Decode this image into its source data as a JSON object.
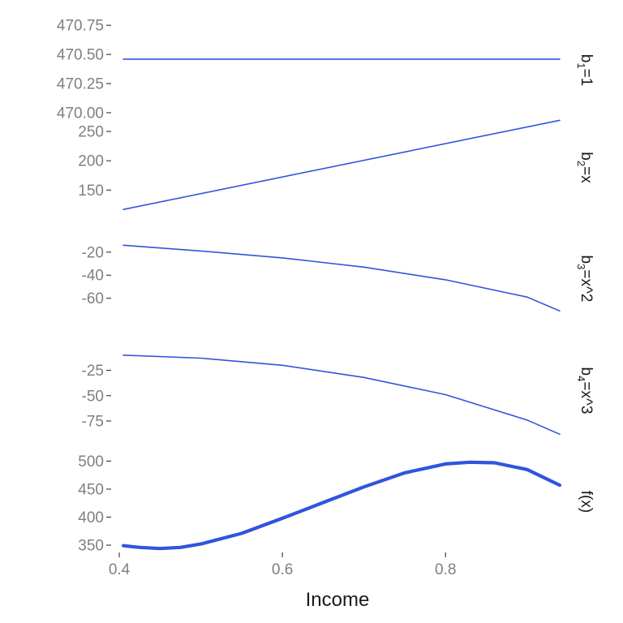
{
  "chart_data": {
    "type": "line",
    "xlabel": "Income",
    "x_ticks": [
      "0.4",
      "0.6",
      "0.8"
    ],
    "x_tick_values": [
      0.4,
      0.6,
      0.8
    ],
    "xlim": [
      0.39,
      0.945
    ],
    "line_color": "#2f55dc",
    "grid": false,
    "panels": [
      {
        "strip_label": {
          "base": "b",
          "sub": "1",
          "rest": "=1"
        },
        "ylim": [
          469.93,
          470.8
        ],
        "y_ticks": [
          "470.75",
          "470.50",
          "470.25",
          "470.00"
        ],
        "y_tick_values": [
          470.75,
          470.5,
          470.25,
          470.0
        ],
        "x": [
          0.405,
          0.94
        ],
        "y": [
          470.46,
          470.46
        ],
        "emphasis": "thin"
      },
      {
        "strip_label": {
          "base": "b",
          "sub": "2",
          "rest": "=x"
        },
        "ylim": [
          102,
          275
        ],
        "y_ticks": [
          "250",
          "200",
          "150"
        ],
        "y_tick_values": [
          250,
          200,
          150
        ],
        "x": [
          0.405,
          0.94
        ],
        "y": [
          117,
          269
        ],
        "emphasis": "thin"
      },
      {
        "strip_label": {
          "base": "b",
          "sub": "3",
          "rest": "=x^2"
        },
        "ylim": [
          -87,
          1
        ],
        "y_ticks": [
          "-20",
          "-40",
          "-60"
        ],
        "y_tick_values": [
          -20,
          -40,
          -60
        ],
        "x": [
          0.405,
          0.5,
          0.6,
          0.7,
          0.8,
          0.9,
          0.94
        ],
        "y": [
          -14,
          -19,
          -25,
          -33,
          -44,
          -59,
          -71
        ],
        "emphasis": "thin"
      },
      {
        "strip_label": {
          "base": "b",
          "sub": "4",
          "rest": "=x^3"
        },
        "ylim": [
          -95,
          5
        ],
        "y_ticks": [
          "-25",
          "-50",
          "-75"
        ],
        "y_tick_values": [
          -25,
          -50,
          -75
        ],
        "x": [
          0.405,
          0.5,
          0.6,
          0.7,
          0.8,
          0.9,
          0.94
        ],
        "y": [
          -10,
          -13,
          -20,
          -32,
          -49,
          -74,
          -88
        ],
        "emphasis": "thin"
      },
      {
        "strip_label": {
          "base": "f(x)",
          "sub": "",
          "rest": ""
        },
        "ylim": [
          337,
          518
        ],
        "y_ticks": [
          "500",
          "450",
          "400",
          "350"
        ],
        "y_tick_values": [
          500,
          450,
          400,
          350
        ],
        "x": [
          0.405,
          0.425,
          0.45,
          0.475,
          0.5,
          0.55,
          0.6,
          0.65,
          0.7,
          0.75,
          0.8,
          0.83,
          0.86,
          0.9,
          0.94
        ],
        "y": [
          349,
          346,
          344,
          346,
          352,
          371,
          398,
          426,
          454,
          479,
          495,
          498,
          497,
          485,
          457
        ],
        "emphasis": "thick"
      }
    ]
  }
}
